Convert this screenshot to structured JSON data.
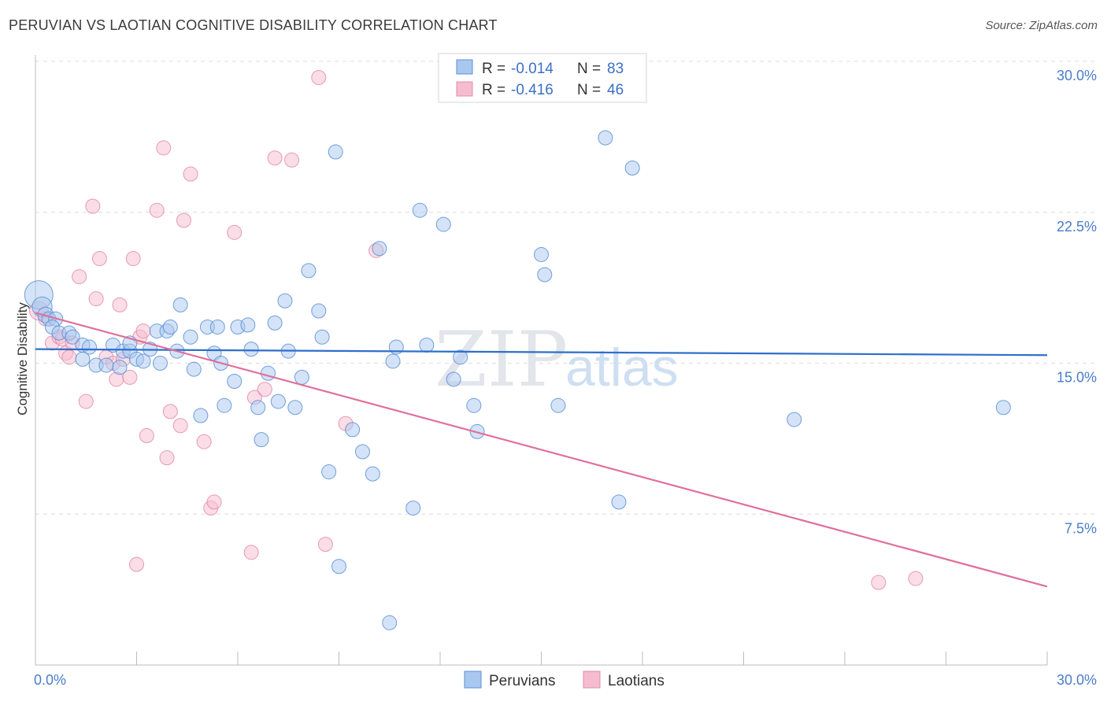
{
  "title": "PERUVIAN VS LAOTIAN COGNITIVE DISABILITY CORRELATION CHART",
  "source": "Source: ZipAtlas.com",
  "watermark": {
    "zip": "ZIP",
    "atlas": "atlas"
  },
  "colors": {
    "peruvian_fill": "#a9c8ef",
    "peruvian_stroke": "#5b8fd6",
    "peruvian_line": "#2f6fca",
    "laotian_fill": "#f5bcd0",
    "laotian_stroke": "#e48aaa",
    "laotian_line": "#e0709a",
    "grid": "#dcdcdc",
    "axis_text": "#4a7cc9"
  },
  "legend_top": [
    {
      "series": "Peruvians",
      "r_label": "R = ",
      "r_value": "-0.014",
      "n_label": "N = ",
      "n_value": "83"
    },
    {
      "series": "Laotians",
      "r_label": "R = ",
      "r_value": "-0.416",
      "n_label": "N = ",
      "n_value": "46"
    }
  ],
  "legend_bottom": [
    "Peruvians",
    "Laotians"
  ],
  "chart_data": {
    "type": "scatter",
    "title": "PERUVIAN VS LAOTIAN COGNITIVE DISABILITY CORRELATION CHART",
    "xlabel": "",
    "ylabel": "Cognitive Disability",
    "xlim": [
      0,
      30
    ],
    "ylim": [
      0,
      30
    ],
    "x_tick_labels": [
      "0.0%",
      "30.0%"
    ],
    "y_ticks": [
      7.5,
      15.0,
      22.5,
      30.0
    ],
    "y_tick_labels": [
      "7.5%",
      "15.0%",
      "22.5%",
      "30.0%"
    ],
    "grid": true,
    "series": [
      {
        "name": "Peruvians",
        "r": -0.014,
        "n": 83,
        "trend": {
          "x": [
            0,
            30
          ],
          "y": [
            15.7,
            15.4
          ]
        },
        "points": [
          [
            0.1,
            18.4,
            2.0
          ],
          [
            0.2,
            17.8,
            1.4
          ],
          [
            0.3,
            17.4,
            1.1
          ],
          [
            0.4,
            17.2,
            1.0
          ],
          [
            0.6,
            17.2,
            1.0
          ],
          [
            0.5,
            16.8,
            1.0
          ],
          [
            0.7,
            16.5,
            1.0
          ],
          [
            1.0,
            16.5,
            1.0
          ],
          [
            1.1,
            16.3,
            1.0
          ],
          [
            1.4,
            15.9,
            1.0
          ],
          [
            1.6,
            15.8,
            1.0
          ],
          [
            1.4,
            15.2,
            1.0
          ],
          [
            1.8,
            14.9,
            1.0
          ],
          [
            2.1,
            14.9,
            1.0
          ],
          [
            2.3,
            15.9,
            1.0
          ],
          [
            2.6,
            15.6,
            1.0
          ],
          [
            2.5,
            14.8,
            1.0
          ],
          [
            2.8,
            15.6,
            1.0
          ],
          [
            2.8,
            16.0,
            1.0
          ],
          [
            3.0,
            15.2,
            1.0
          ],
          [
            3.2,
            15.1,
            1.0
          ],
          [
            3.4,
            15.7,
            1.0
          ],
          [
            3.6,
            16.6,
            1.0
          ],
          [
            3.7,
            15.0,
            1.0
          ],
          [
            3.9,
            16.6,
            1.0
          ],
          [
            4.0,
            16.8,
            1.0
          ],
          [
            4.2,
            15.6,
            1.0
          ],
          [
            4.3,
            17.9,
            1.0
          ],
          [
            4.6,
            16.3,
            1.0
          ],
          [
            4.7,
            14.7,
            1.0
          ],
          [
            4.9,
            12.4,
            1.0
          ],
          [
            5.1,
            16.8,
            1.0
          ],
          [
            5.3,
            15.5,
            1.0
          ],
          [
            5.4,
            16.8,
            1.0
          ],
          [
            5.5,
            15.0,
            1.0
          ],
          [
            5.6,
            12.9,
            1.0
          ],
          [
            5.9,
            14.1,
            1.0
          ],
          [
            6.0,
            16.8,
            1.0
          ],
          [
            6.3,
            16.9,
            1.0
          ],
          [
            6.4,
            15.7,
            1.0
          ],
          [
            6.6,
            12.8,
            1.0
          ],
          [
            6.7,
            11.2,
            1.0
          ],
          [
            6.9,
            14.5,
            1.0
          ],
          [
            7.1,
            17.0,
            1.0
          ],
          [
            7.2,
            13.1,
            1.0
          ],
          [
            7.4,
            18.1,
            1.0
          ],
          [
            7.5,
            15.6,
            1.0
          ],
          [
            7.7,
            12.8,
            1.0
          ],
          [
            7.9,
            14.3,
            1.0
          ],
          [
            8.1,
            19.6,
            1.0
          ],
          [
            8.4,
            17.6,
            1.0
          ],
          [
            8.5,
            16.3,
            1.0
          ],
          [
            8.7,
            9.6,
            1.0
          ],
          [
            8.9,
            25.5,
            1.0
          ],
          [
            9.0,
            4.9,
            1.0
          ],
          [
            9.4,
            11.7,
            1.0
          ],
          [
            9.7,
            10.6,
            1.0
          ],
          [
            10.0,
            9.5,
            1.0
          ],
          [
            10.2,
            20.7,
            1.0
          ],
          [
            10.5,
            2.1,
            1.0
          ],
          [
            10.6,
            15.1,
            1.0
          ],
          [
            10.7,
            15.8,
            1.0
          ],
          [
            11.2,
            7.8,
            1.0
          ],
          [
            11.4,
            22.6,
            1.0
          ],
          [
            11.6,
            15.9,
            1.0
          ],
          [
            12.1,
            21.9,
            1.0
          ],
          [
            12.4,
            14.2,
            1.0
          ],
          [
            12.6,
            15.3,
            1.0
          ],
          [
            13.0,
            12.9,
            1.0
          ],
          [
            13.1,
            11.6,
            1.0
          ],
          [
            13.8,
            29.1,
            1.0
          ],
          [
            15.0,
            20.4,
            1.0
          ],
          [
            15.1,
            19.4,
            1.0
          ],
          [
            15.5,
            12.9,
            1.0
          ],
          [
            16.9,
            26.2,
            1.0
          ],
          [
            17.3,
            8.1,
            1.0
          ],
          [
            17.7,
            24.7,
            1.0
          ],
          [
            22.5,
            12.2,
            1.0
          ],
          [
            28.7,
            12.8,
            1.0
          ]
        ]
      },
      {
        "name": "Laotians",
        "r": -0.416,
        "n": 46,
        "trend": {
          "x": [
            0,
            30
          ],
          "y": [
            17.5,
            3.9
          ]
        },
        "points": [
          [
            0.1,
            17.6,
            1.3
          ],
          [
            0.3,
            17.2,
            1.0
          ],
          [
            0.5,
            16.0,
            1.0
          ],
          [
            0.7,
            16.3,
            1.0
          ],
          [
            0.8,
            16.2,
            1.0
          ],
          [
            0.9,
            15.5,
            1.0
          ],
          [
            1.0,
            15.3,
            1.0
          ],
          [
            1.1,
            16.0,
            1.0
          ],
          [
            1.3,
            19.3,
            1.0
          ],
          [
            1.5,
            13.1,
            1.0
          ],
          [
            1.7,
            22.8,
            1.0
          ],
          [
            1.8,
            18.2,
            1.0
          ],
          [
            1.9,
            20.2,
            1.0
          ],
          [
            2.1,
            15.3,
            1.0
          ],
          [
            2.3,
            15.0,
            1.0
          ],
          [
            2.4,
            14.2,
            1.0
          ],
          [
            2.5,
            17.9,
            1.0
          ],
          [
            2.6,
            15.2,
            1.0
          ],
          [
            2.8,
            14.3,
            1.0
          ],
          [
            2.9,
            20.2,
            1.0
          ],
          [
            3.0,
            5.0,
            1.0
          ],
          [
            3.1,
            16.3,
            1.0
          ],
          [
            3.2,
            16.6,
            1.0
          ],
          [
            3.3,
            11.4,
            1.0
          ],
          [
            3.6,
            22.6,
            1.0
          ],
          [
            3.8,
            25.7,
            1.0
          ],
          [
            3.9,
            10.3,
            1.0
          ],
          [
            4.0,
            12.6,
            1.0
          ],
          [
            4.3,
            11.9,
            1.0
          ],
          [
            4.4,
            22.1,
            1.0
          ],
          [
            4.6,
            24.4,
            1.0
          ],
          [
            5.0,
            11.1,
            1.0
          ],
          [
            5.2,
            7.8,
            1.0
          ],
          [
            5.3,
            8.1,
            1.0
          ],
          [
            5.9,
            21.5,
            1.0
          ],
          [
            6.4,
            5.6,
            1.0
          ],
          [
            6.5,
            13.3,
            1.0
          ],
          [
            6.8,
            13.7,
            1.0
          ],
          [
            7.1,
            25.2,
            1.0
          ],
          [
            7.6,
            25.1,
            1.0
          ],
          [
            8.4,
            29.2,
            1.0
          ],
          [
            8.6,
            6.0,
            1.0
          ],
          [
            9.2,
            12.0,
            1.0
          ],
          [
            10.1,
            20.6,
            1.0
          ],
          [
            25.0,
            4.1,
            1.0
          ],
          [
            26.1,
            4.3,
            1.0
          ]
        ]
      }
    ]
  }
}
